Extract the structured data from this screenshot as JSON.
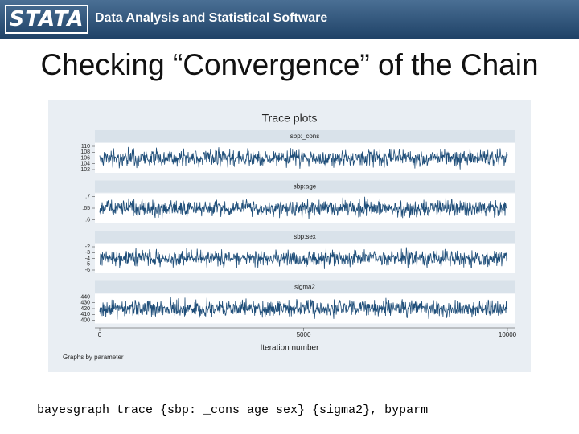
{
  "header": {
    "logo": "STATA",
    "tagline": "Data Analysis and Statistical Software"
  },
  "title": "Checking “Convergence” of the Chain",
  "figure": {
    "title": "Trace plots",
    "panels": [
      {
        "name": "sbp:_cons",
        "yticks": [
          110,
          108,
          106,
          104,
          102
        ]
      },
      {
        "name": "sbp:age",
        "yticks": [
          {
            "value": 0.7,
            "label": ".7"
          },
          {
            "value": 0.65,
            "label": ".65"
          },
          {
            "value": 0.6,
            "label": ".6"
          }
        ]
      },
      {
        "name": "sbp:sex",
        "yticks": [
          -2,
          -3,
          -4,
          -5,
          -6
        ]
      },
      {
        "name": "sigma2",
        "yticks": [
          440,
          430,
          420,
          410,
          400
        ]
      }
    ],
    "xticks": [
      0,
      5000,
      10000
    ],
    "xlabel": "Iteration number",
    "note": "Graphs by parameter"
  },
  "command": "bayesgraph trace {sbp: _cons age sex} {sigma2}, byparm"
}
